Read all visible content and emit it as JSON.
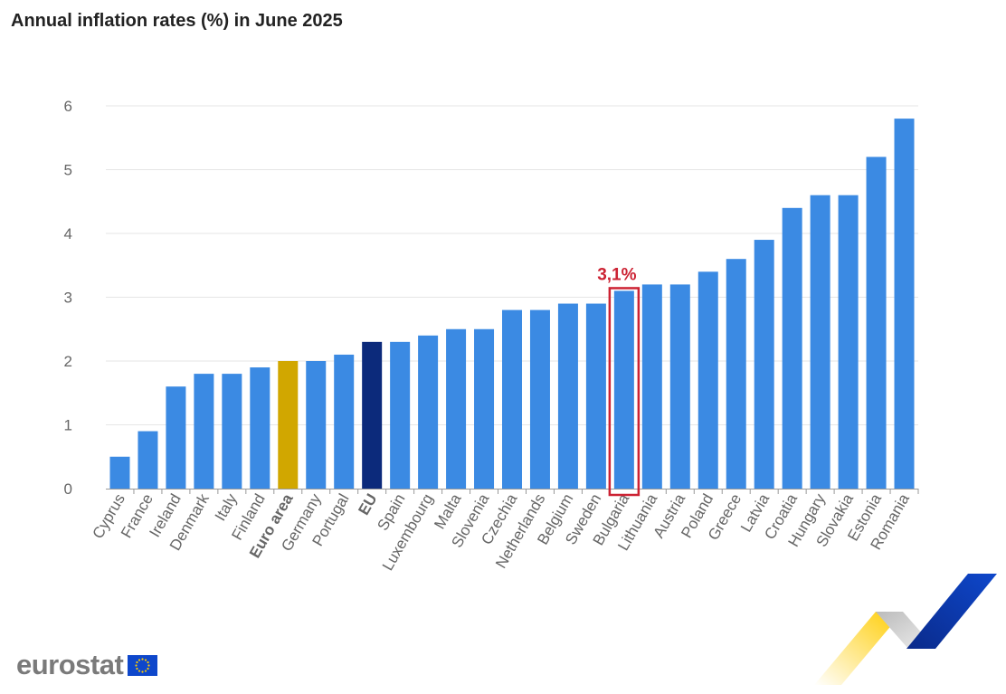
{
  "title": "Annual inflation rates (%) in June 2025",
  "brand": {
    "name": "eurostat"
  },
  "colors": {
    "default": "#3b8ae3",
    "euro_area": "#d1a700",
    "eu": "#0c2a7b",
    "highlight": "#cc2233",
    "grid": "#e6e6e6",
    "axis_text": "#666666"
  },
  "chart_data": {
    "type": "bar",
    "title": "Annual inflation rates (%) in June 2025",
    "xlabel": "",
    "ylabel": "",
    "ylim": [
      0,
      6
    ],
    "yticks": [
      0,
      1,
      2,
      3,
      4,
      5,
      6
    ],
    "grid": true,
    "legend": "none",
    "categories": [
      "Cyprus",
      "France",
      "Ireland",
      "Denmark",
      "Italy",
      "Finland",
      "Euro area",
      "Germany",
      "Portugal",
      "EU",
      "Spain",
      "Luxembourg",
      "Malta",
      "Slovenia",
      "Czechia",
      "Netherlands",
      "Belgium",
      "Sweden",
      "Bulgaria",
      "Lithuania",
      "Austria",
      "Poland",
      "Greece",
      "Latvia",
      "Croatia",
      "Hungary",
      "Slovakia",
      "Estonia",
      "Romania"
    ],
    "values": [
      0.5,
      0.9,
      1.6,
      1.8,
      1.8,
      1.9,
      2.0,
      2.0,
      2.1,
      2.3,
      2.3,
      2.4,
      2.5,
      2.5,
      2.8,
      2.8,
      2.9,
      2.9,
      3.1,
      3.2,
      3.2,
      3.4,
      3.6,
      3.9,
      4.4,
      4.6,
      4.6,
      5.2,
      5.8
    ],
    "special": {
      "Euro area": "euro_area",
      "EU": "eu"
    },
    "bold_labels": [
      "Euro area",
      "EU"
    ],
    "highlight": {
      "category": "Bulgaria",
      "label": "3,1%"
    }
  }
}
